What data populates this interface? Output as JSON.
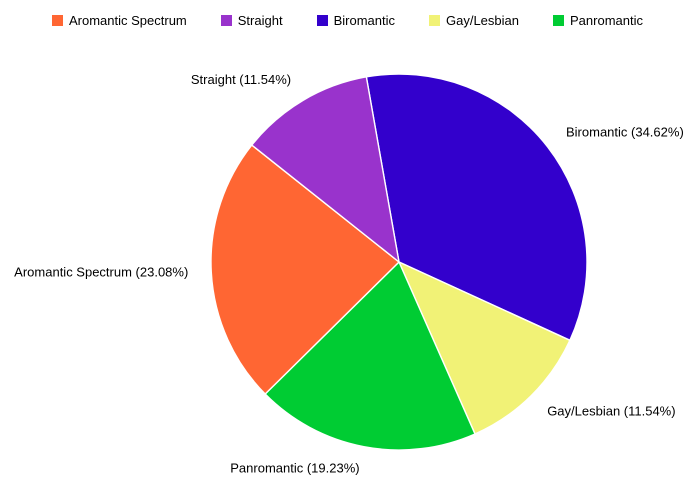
{
  "chart_data": {
    "type": "pie",
    "title": "",
    "legend_position": "top",
    "background_color": "#ffffff",
    "label_color": "#000000",
    "separator_color": "#ffffff",
    "start_angle_deg_clockwise_from_top": -10,
    "legend_order": [
      "Aromantic Spectrum",
      "Straight",
      "Biromantic",
      "Gay/Lesbian",
      "Panromantic"
    ],
    "slices_clockwise": [
      {
        "label": "Biromantic",
        "pct": 34.62,
        "color": "#3300CC",
        "slice_label": "Biromantic (34.62%)"
      },
      {
        "label": "Gay/Lesbian",
        "pct": 11.54,
        "color": "#F1F276",
        "slice_label": "Gay/Lesbian (11.54%)"
      },
      {
        "label": "Panromantic",
        "pct": 19.23,
        "color": "#00CC33",
        "slice_label": "Panromantic (19.23%)"
      },
      {
        "label": "Aromantic Spectrum",
        "pct": 23.08,
        "color": "#FF6633",
        "slice_label": "Aromantic Spectrum (23.08%)"
      },
      {
        "label": "Straight",
        "pct": 11.54,
        "color": "#9933CC",
        "slice_label": "Straight (11.54%)"
      }
    ]
  }
}
